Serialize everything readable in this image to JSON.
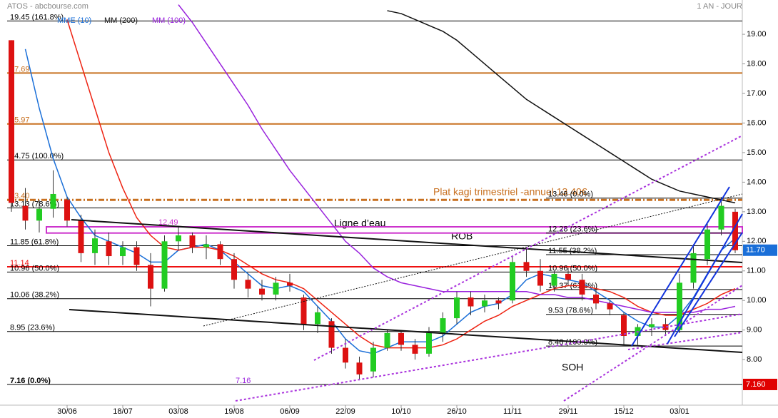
{
  "header": {
    "title": "ATOS - abcbourse.com",
    "period": "1 AN - JOUR"
  },
  "chart_data": {
    "type": "candlestick",
    "categories": [
      null,
      null,
      null,
      null,
      "30/06",
      null,
      null,
      null,
      "18/07",
      null,
      null,
      null,
      "03/08",
      null,
      null,
      null,
      "19/08",
      null,
      null,
      null,
      "06/09",
      null,
      null,
      null,
      "22/09",
      null,
      null,
      null,
      "10/10",
      null,
      null,
      null,
      "26/10",
      null,
      null,
      null,
      "11/11",
      null,
      null,
      null,
      "29/11",
      null,
      null,
      null,
      "15/12",
      null,
      null,
      null,
      "03/01",
      null,
      null,
      null,
      null
    ],
    "open": [
      18.8,
      13.2,
      12.7,
      13.1,
      13.4,
      12.7,
      11.6,
      12.0,
      11.5,
      11.8,
      11.2,
      10.4,
      12.0,
      12.2,
      11.8,
      11.9,
      11.4,
      10.7,
      10.4,
      10.2,
      10.6,
      10.1,
      9.2,
      9.3,
      8.4,
      7.9,
      7.6,
      8.4,
      8.9,
      8.5,
      8.2,
      8.9,
      9.4,
      10.1,
      9.8,
      10.0,
      10.0,
      11.3,
      11.0,
      10.5,
      10.9,
      10.7,
      10.2,
      9.9,
      9.5,
      8.8,
      9.1,
      9.2,
      9.0,
      10.6,
      11.4,
      12.4,
      13.0
    ],
    "high": [
      18.8,
      13.8,
      13.4,
      14.4,
      13.5,
      12.9,
      12.4,
      12.3,
      12.0,
      12.0,
      11.6,
      12.2,
      12.5,
      12.3,
      12.2,
      12.0,
      11.6,
      10.9,
      10.7,
      10.8,
      10.9,
      10.2,
      9.8,
      9.4,
      8.7,
      8.1,
      8.6,
      9.0,
      9.0,
      8.7,
      9.1,
      9.6,
      10.3,
      10.3,
      10.2,
      10.1,
      11.5,
      11.8,
      11.4,
      11.0,
      11.1,
      10.9,
      10.4,
      10.0,
      9.6,
      9.2,
      9.4,
      9.4,
      10.9,
      11.9,
      12.6,
      13.5,
      13.1
    ],
    "low": [
      13.0,
      12.4,
      12.3,
      12.8,
      12.5,
      11.3,
      11.2,
      11.2,
      11.2,
      11.0,
      9.8,
      10.3,
      11.7,
      11.6,
      11.4,
      11.2,
      10.4,
      10.1,
      10.0,
      10.0,
      10.3,
      9.0,
      8.9,
      8.2,
      7.7,
      7.3,
      7.4,
      8.3,
      8.3,
      8.0,
      8.1,
      8.6,
      9.2,
      9.5,
      9.6,
      9.7,
      9.9,
      10.8,
      10.3,
      10.3,
      10.5,
      10.0,
      9.7,
      9.5,
      8.5,
      8.5,
      8.8,
      8.8,
      8.9,
      10.4,
      11.2,
      12.2,
      11.6
    ],
    "close": [
      13.3,
      12.7,
      13.1,
      13.6,
      12.7,
      11.6,
      12.1,
      11.5,
      11.8,
      11.2,
      10.4,
      12.0,
      12.2,
      11.8,
      11.9,
      11.4,
      10.7,
      10.4,
      10.2,
      10.6,
      10.5,
      9.2,
      9.6,
      8.4,
      7.9,
      7.5,
      8.4,
      8.9,
      8.5,
      8.2,
      8.9,
      9.4,
      10.1,
      9.8,
      10.0,
      9.9,
      11.3,
      11.0,
      10.5,
      10.9,
      10.7,
      10.2,
      9.9,
      9.7,
      8.8,
      9.1,
      9.2,
      9.0,
      10.6,
      11.6,
      12.4,
      13.2,
      11.7
    ],
    "up_color": "#22cc22",
    "down_color": "#dd1111",
    "series": [
      {
        "name": "MME (10)",
        "color": "#1a6fd8",
        "values": [
          null,
          18.5,
          16.5,
          14.8,
          13.5,
          12.8,
          12.2,
          12.0,
          11.8,
          11.6,
          11.3,
          11.3,
          11.7,
          11.8,
          11.9,
          11.7,
          11.3,
          10.9,
          10.5,
          10.4,
          10.5,
          10.3,
          9.8,
          9.3,
          8.7,
          8.3,
          8.2,
          8.4,
          8.6,
          8.6,
          8.6,
          8.8,
          9.2,
          9.6,
          9.8,
          9.9,
          10.2,
          10.7,
          10.9,
          10.8,
          10.7,
          10.6,
          10.3,
          10.0,
          9.6,
          9.3,
          9.1,
          9.1,
          9.5,
          10.1,
          10.9,
          11.7,
          12.1
        ]
      },
      {
        "color": "#ee2211",
        "values": [
          null,
          null,
          null,
          null,
          19.5,
          18.0,
          16.5,
          15.0,
          13.8,
          12.8,
          12.2,
          11.8,
          11.7,
          11.8,
          11.8,
          11.7,
          11.5,
          11.2,
          10.9,
          10.7,
          10.6,
          10.4,
          10.0,
          9.6,
          9.2,
          8.8,
          8.5,
          8.4,
          8.4,
          8.4,
          8.4,
          8.5,
          8.7,
          9.0,
          9.3,
          9.5,
          9.8,
          10.0,
          10.2,
          10.4,
          10.5,
          10.5,
          10.4,
          10.3,
          10.1,
          9.8,
          9.6,
          9.5,
          9.5,
          9.7,
          9.9,
          10.2,
          10.4
        ]
      },
      {
        "name": "MM (200)",
        "color": "#111111",
        "values": [
          null,
          null,
          null,
          null,
          null,
          null,
          null,
          null,
          null,
          null,
          null,
          null,
          null,
          null,
          null,
          null,
          null,
          null,
          null,
          null,
          null,
          null,
          null,
          null,
          null,
          null,
          null,
          19.8,
          19.7,
          19.5,
          19.3,
          19.1,
          18.8,
          18.4,
          18.0,
          17.6,
          17.2,
          16.8,
          16.5,
          16.2,
          15.9,
          15.6,
          15.3,
          15.0,
          14.7,
          14.4,
          14.1,
          13.9,
          13.7,
          13.6,
          13.5,
          13.4,
          13.3
        ]
      },
      {
        "name": "MM (100)",
        "color": "#9922dd",
        "values": [
          null,
          null,
          null,
          null,
          null,
          null,
          null,
          null,
          null,
          null,
          null,
          null,
          20.0,
          19.4,
          18.7,
          18.0,
          17.3,
          16.6,
          15.8,
          15.1,
          14.4,
          13.8,
          13.2,
          12.6,
          12.0,
          11.6,
          11.1,
          10.8,
          10.6,
          10.5,
          10.4,
          10.3,
          10.3,
          10.3,
          10.3,
          10.3,
          10.3,
          10.3,
          10.2,
          10.2,
          10.1,
          10.1,
          10.0,
          9.9,
          9.8,
          9.7,
          9.6,
          9.6,
          9.6,
          9.6,
          9.7,
          9.7,
          9.8
        ]
      }
    ],
    "ylim": [
      6.46,
      20.16
    ],
    "yticks": [
      {
        "value": 8,
        "label": "8.00"
      },
      {
        "value": 9,
        "label": "9.00"
      },
      {
        "value": 10,
        "label": "10.00"
      },
      {
        "value": 11,
        "label": "11.00"
      },
      {
        "value": 12,
        "label": "12.00"
      },
      {
        "value": 13,
        "label": "13.00"
      },
      {
        "value": 14,
        "label": "14.00"
      },
      {
        "value": 15,
        "label": "15.00"
      },
      {
        "value": 16,
        "label": "16.00"
      },
      {
        "value": 17,
        "label": "17.00"
      },
      {
        "value": 18,
        "label": "18.00"
      },
      {
        "value": 19,
        "label": "19.00"
      }
    ],
    "levels_left": [
      {
        "value": 19.45,
        "label": "19.45 (161.8%)",
        "color": "#000000"
      },
      {
        "value": 17.69,
        "label": "17.69",
        "color": "#c87020"
      },
      {
        "value": 15.97,
        "label": "15.97",
        "color": "#c87020"
      },
      {
        "value": 14.75,
        "label": "14.75 (100.0%)",
        "color": "#000000"
      },
      {
        "value": 13.4,
        "label": "13.40",
        "color": "#c87020"
      },
      {
        "value": 13.13,
        "label": "13.13 (78.6%)",
        "color": "#000000"
      },
      {
        "value": 11.85,
        "label": "11.85 (61.8%)",
        "color": "#000000"
      },
      {
        "value": 11.14,
        "label": "11.14",
        "color": "#ee1111"
      },
      {
        "value": 10.96,
        "label": "10.96 (50.0%)",
        "color": "#000000"
      },
      {
        "value": 10.06,
        "label": "10.06 (38.2%)",
        "color": "#000000"
      },
      {
        "value": 8.95,
        "label": "8.95 (23.6%)",
        "color": "#000000"
      },
      {
        "value": 7.16,
        "label": "7.16  (0.0%)",
        "color": "#000000"
      }
    ],
    "levels_right": [
      {
        "value": 13.46,
        "label": "13.46  (0.0%)"
      },
      {
        "value": 12.28,
        "label": "12.28  (23.6%)"
      },
      {
        "value": 11.55,
        "label": "11.55  (38.2%)"
      },
      {
        "value": 10.96,
        "label": "10.96  (50.0%)"
      },
      {
        "value": 10.37,
        "label": "10.37  (61.8%)"
      },
      {
        "value": 9.53,
        "label": "9.53  (78.6%)"
      },
      {
        "value": 8.46,
        "label": "8.46  (100.0%)"
      }
    ],
    "band": {
      "range": [
        12.28,
        12.49
      ],
      "color": "#cc33cc"
    },
    "annotations": {
      "kagi": "Plat kagi trimestriel -annuel 13.40€",
      "water": "Ligne d’eau",
      "rob": "ROB",
      "soh": "SOH",
      "low": "7.16"
    },
    "price_labels": [
      {
        "value": 11.7,
        "label": "11.70",
        "color": "#1a6fd8"
      },
      {
        "value": 7.16,
        "label": "7.160",
        "color": "#e00000"
      }
    ]
  }
}
